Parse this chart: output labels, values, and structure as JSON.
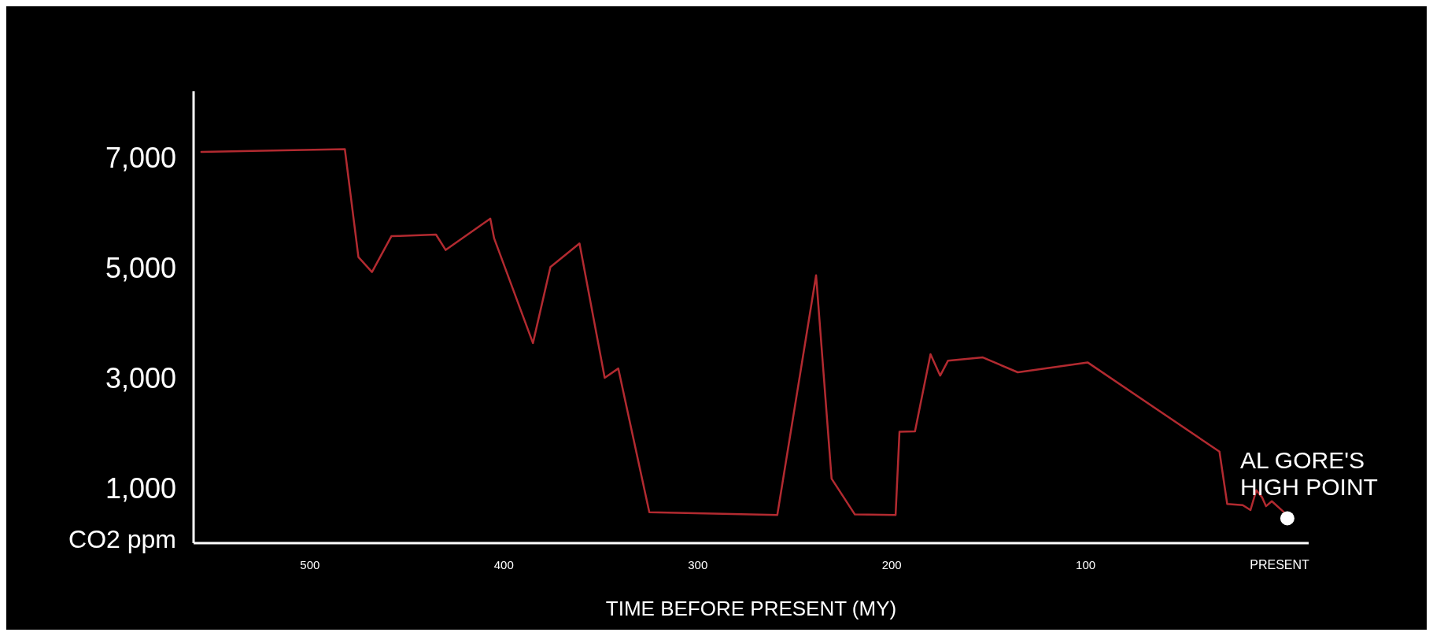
{
  "chart_data": {
    "type": "line",
    "xlabel": "TIME BEFORE PRESENT (MY)",
    "ylabel": "CO2 ppm",
    "xlim": [
      560,
      -15
    ],
    "xticks": [
      500,
      400,
      300,
      200,
      100,
      {
        "value": 0,
        "label": "PRESENT"
      }
    ],
    "ylim": [
      0,
      8200
    ],
    "yticks": [
      {
        "value": 1000,
        "label": "1,000"
      },
      {
        "value": 3000,
        "label": "3,000"
      },
      {
        "value": 5000,
        "label": "5,000"
      },
      {
        "value": 7000,
        "label": "7,000"
      }
    ],
    "grid": false,
    "series": [
      {
        "color": "#b22a30",
        "line_style": "solid",
        "marker": "none",
        "x": [
          556,
          482,
          475,
          468,
          458,
          435,
          430,
          407,
          405,
          385,
          376,
          361,
          348,
          341,
          325,
          259,
          239,
          231,
          219,
          198,
          196,
          188,
          180,
          175,
          171,
          153,
          135,
          99,
          31,
          27,
          19,
          15,
          12,
          9,
          7,
          4,
          -2
        ],
        "values": [
          7100,
          7150,
          5190,
          4920,
          5570,
          5600,
          5320,
          5890,
          5530,
          3630,
          5010,
          5440,
          3000,
          3170,
          560,
          510,
          4860,
          1170,
          520,
          510,
          2020,
          2030,
          3430,
          3040,
          3310,
          3370,
          3100,
          3280,
          1660,
          710,
          690,
          600,
          960,
          830,
          670,
          760,
          570
        ]
      },
      {
        "type": "scatter",
        "color": "#ffffff",
        "marker": "circle",
        "x": [
          -4
        ],
        "values": [
          450
        ]
      }
    ],
    "annotations": [
      {
        "text": "AL GORE'S\nHIGH POINT",
        "x": -4,
        "y": 450
      }
    ]
  }
}
